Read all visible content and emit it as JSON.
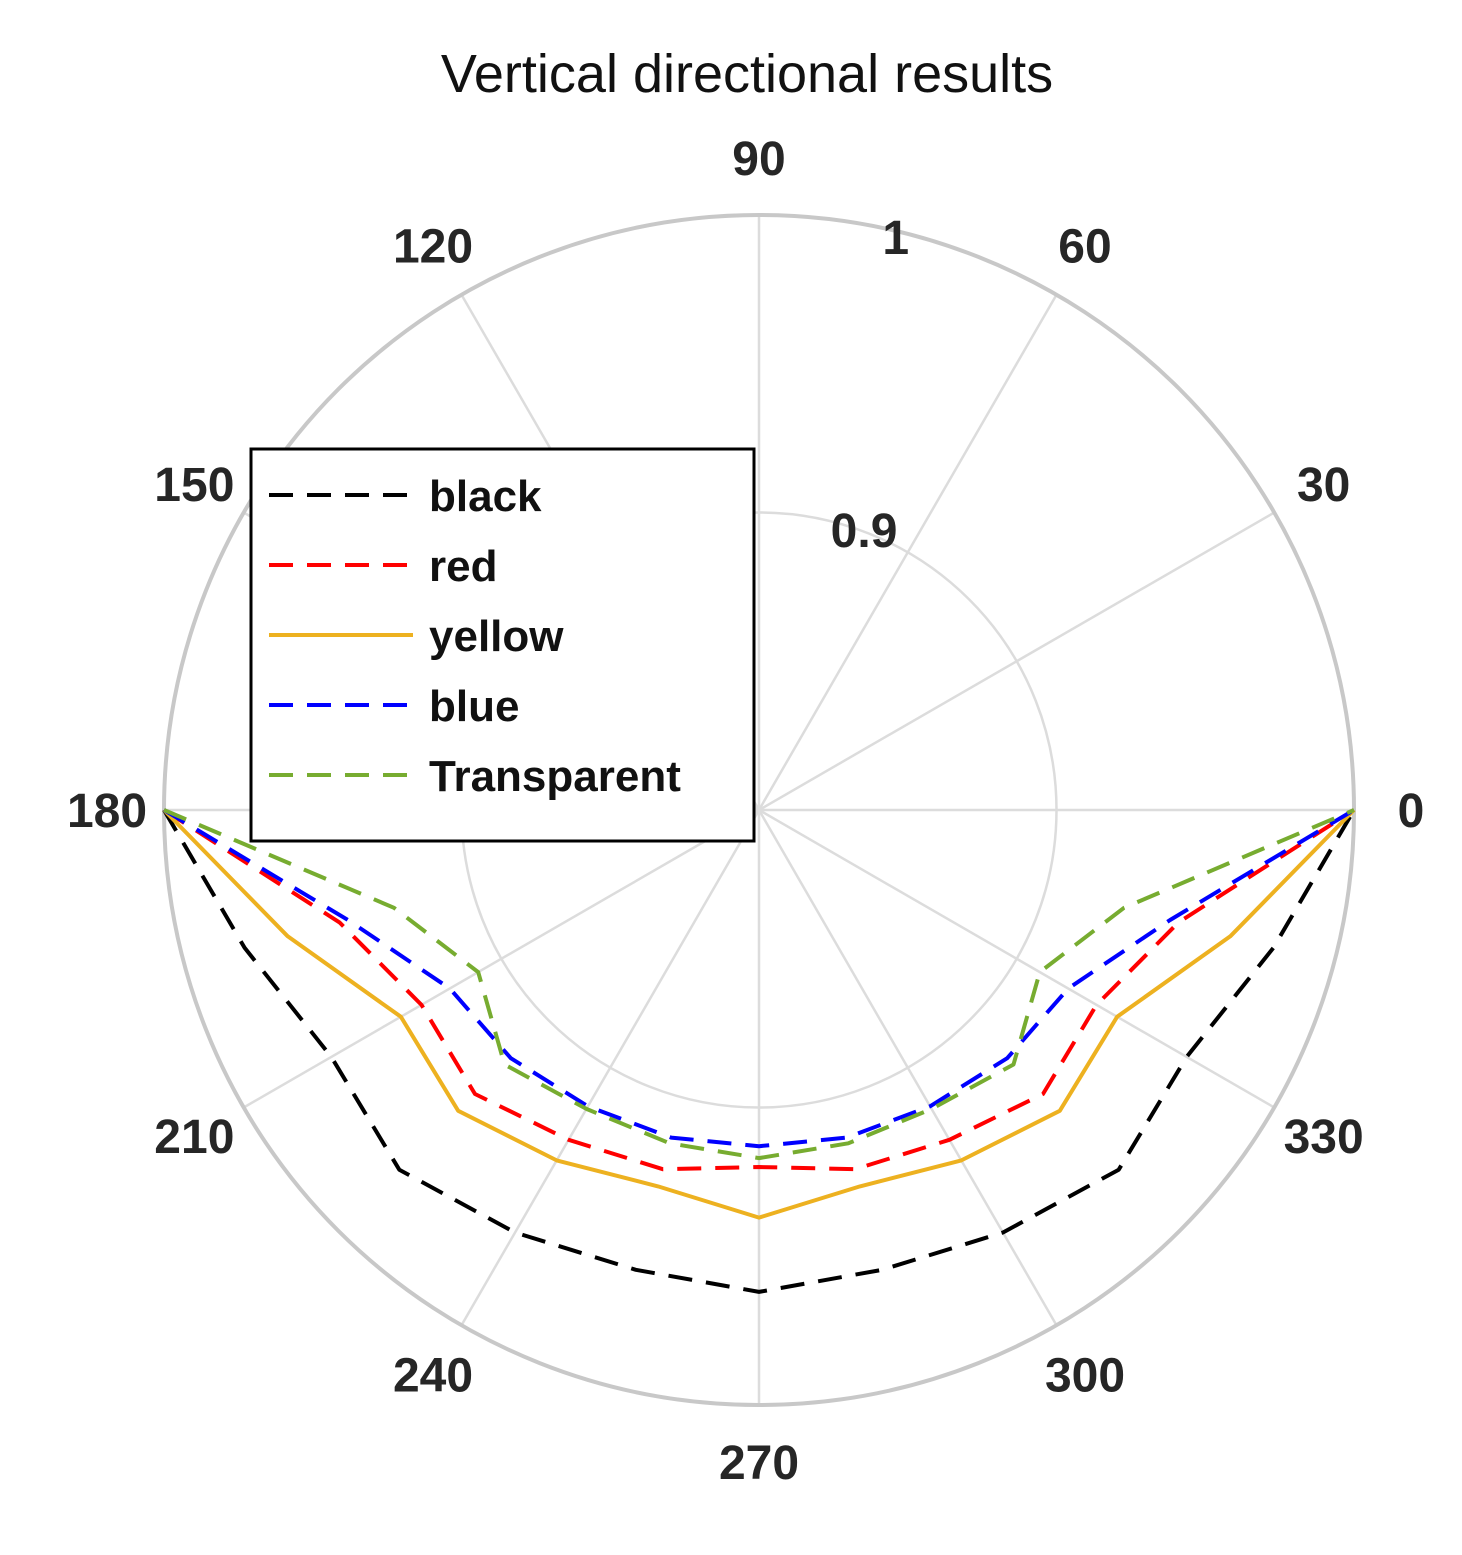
{
  "chart_data": {
    "type": "polar-line",
    "title": "Vertical directional results",
    "r_ticks": [
      0.9,
      1
    ],
    "r_tick_labels": [
      "0.9",
      "1"
    ],
    "r_lim": [
      0.8,
      1
    ],
    "theta_ticks": [
      0,
      30,
      60,
      90,
      120,
      150,
      180,
      210,
      240,
      270,
      300,
      330
    ],
    "theta_tick_labels": [
      "0",
      "30",
      "60",
      "90",
      "120",
      "150",
      "180",
      "210",
      "240",
      "270",
      "300",
      "330"
    ],
    "grid": true,
    "legend_position": "upper-left",
    "theta": [
      180,
      195,
      210,
      225,
      240,
      255,
      270,
      285,
      300,
      315,
      330,
      345,
      360
    ],
    "series": [
      {
        "name": "black",
        "color": "#000000",
        "dash": "dashed",
        "values": [
          1.0,
          0.979,
          0.966,
          0.971,
          0.964,
          0.96,
          0.962,
          0.96,
          0.964,
          0.971,
          0.966,
          0.979,
          1.0
        ]
      },
      {
        "name": "red",
        "color": "#ff0000",
        "dash": "dashed",
        "values": [
          1.0,
          0.946,
          0.931,
          0.935,
          0.928,
          0.925,
          0.92,
          0.925,
          0.928,
          0.935,
          0.931,
          0.946,
          1.0
        ]
      },
      {
        "name": "yellow",
        "color": "#edb120",
        "dash": "solid",
        "values": [
          1.0,
          0.964,
          0.939,
          0.943,
          0.936,
          0.931,
          0.937,
          0.931,
          0.936,
          0.943,
          0.939,
          0.964,
          1.0
        ]
      },
      {
        "name": "blue",
        "color": "#0000ff",
        "dash": "dashed",
        "values": [
          1.0,
          0.943,
          0.92,
          0.918,
          0.915,
          0.914,
          0.913,
          0.914,
          0.915,
          0.918,
          0.92,
          0.943,
          1.0
        ]
      },
      {
        "name": "Transparent",
        "color": "#77ac30",
        "dash": "dashed",
        "values": [
          1.0,
          0.927,
          0.909,
          0.921,
          0.916,
          0.916,
          0.917,
          0.916,
          0.916,
          0.921,
          0.909,
          0.927,
          1.0
        ]
      }
    ]
  }
}
